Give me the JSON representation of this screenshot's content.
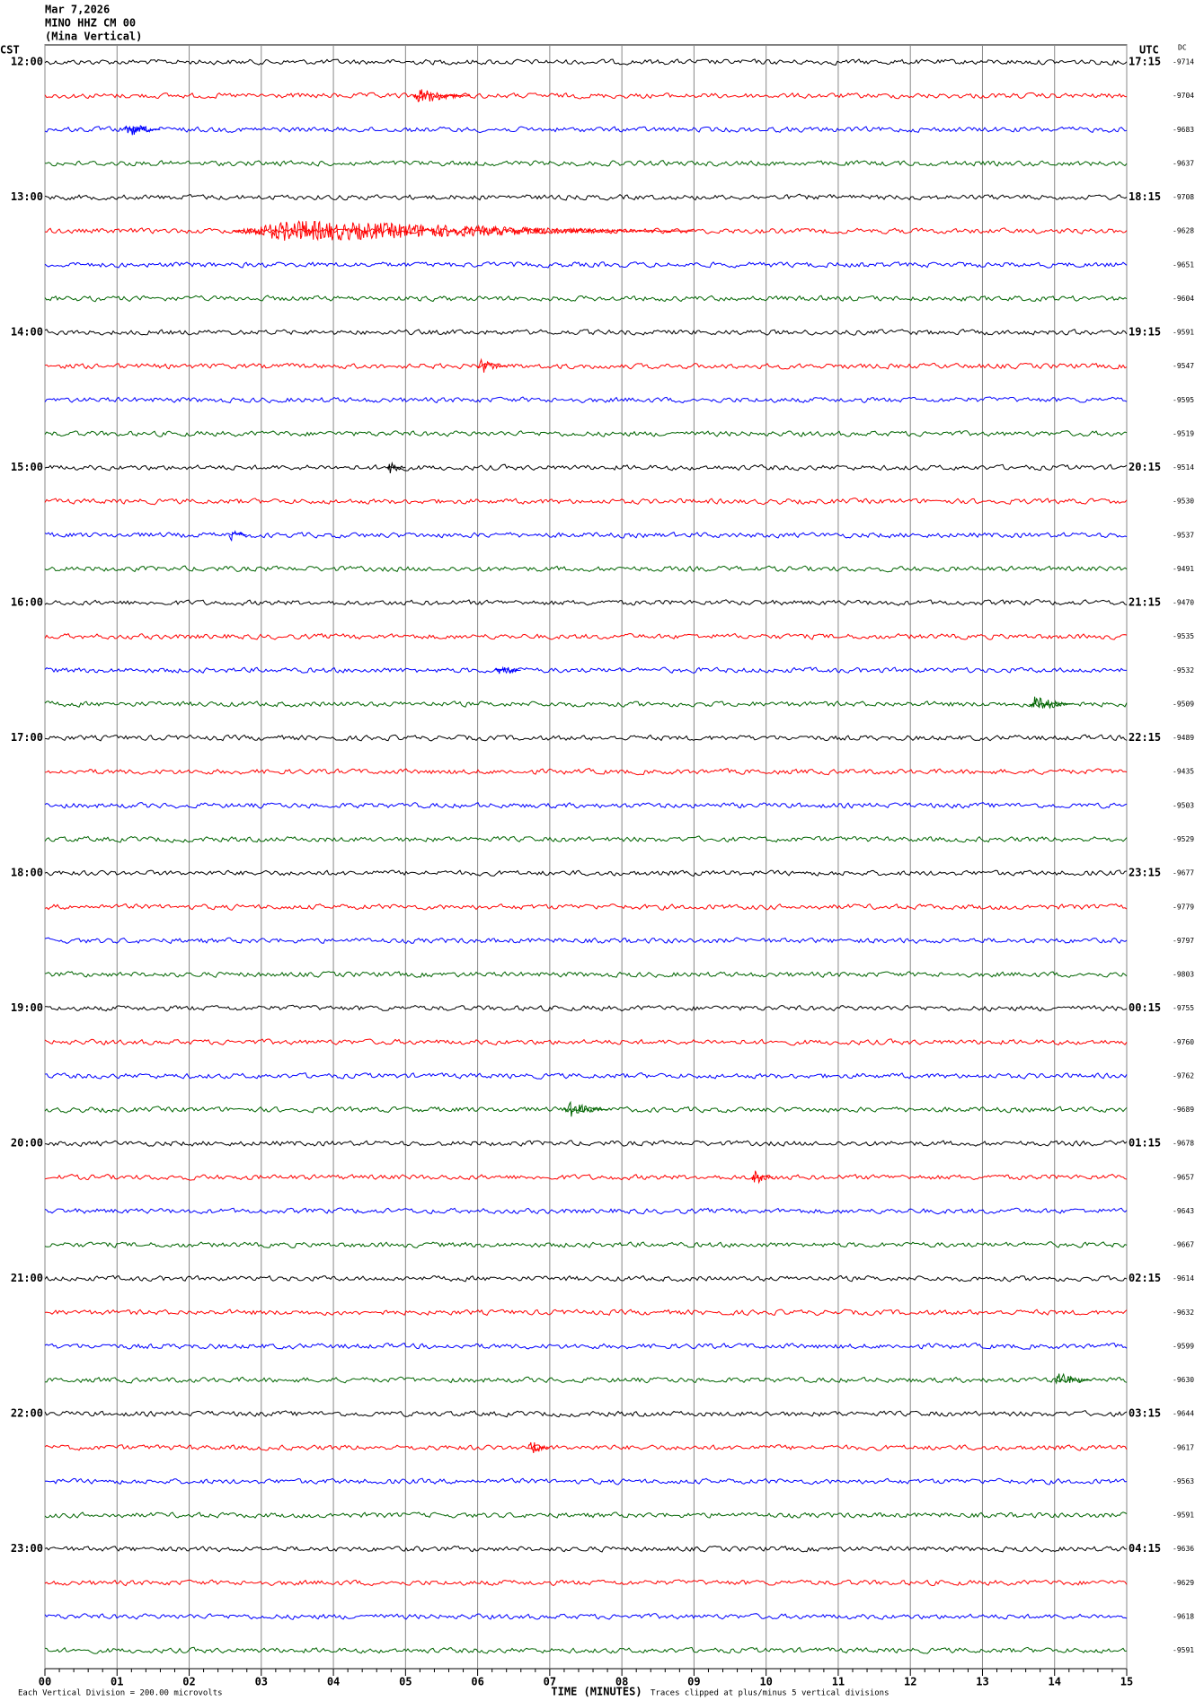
{
  "chart_data": {
    "type": "helicorder",
    "title": "Mar 7,2026",
    "station": "MINO HHZ CM 00",
    "subtitle": "(Mina Vertical)",
    "left_zone": "CST",
    "right_zone": "UTC",
    "dc_header": "DC",
    "x_label": "TIME (MINUTES)",
    "scale_note": "Each Vertical Division =  200.00 microvolts",
    "clip_note": "Traces clipped at plus/minus 5 vertical divisions",
    "xlim": [
      0,
      15
    ],
    "xticks": [
      {
        "value": 0,
        "label": "00"
      },
      {
        "value": 1,
        "label": "01"
      },
      {
        "value": 2,
        "label": "02"
      },
      {
        "value": 3,
        "label": "03"
      },
      {
        "value": 4,
        "label": "04"
      },
      {
        "value": 5,
        "label": "05"
      },
      {
        "value": 6,
        "label": "06"
      },
      {
        "value": 7,
        "label": "07"
      },
      {
        "value": 8,
        "label": "08"
      },
      {
        "value": 9,
        "label": "09"
      },
      10,
      11,
      12,
      13,
      14,
      15
    ],
    "grid": true,
    "colors": [
      "#000000",
      "#ff0000",
      "#0000ff",
      "#006400"
    ],
    "left_labels": [
      "12:00",
      "13:00",
      "14:00",
      "15:00",
      "16:00",
      "17:00",
      "18:00",
      "19:00",
      "20:00",
      "21:00",
      "22:00",
      "23:00"
    ],
    "right_labels": [
      "17:15",
      "18:15",
      "19:15",
      "20:15",
      "21:15",
      "22:15",
      "23:15",
      "00:15",
      "01:15",
      "02:15",
      "03:15",
      "04:15"
    ],
    "dc": [
      -9714,
      -9704,
      -9683,
      -9637,
      -9708,
      -9628,
      -9651,
      -9604,
      -9591,
      -9547,
      -9595,
      -9519,
      -9514,
      -9530,
      -9537,
      -9491,
      -9470,
      -9535,
      -9532,
      -9509,
      -9489,
      -9435,
      -9503,
      -9529,
      -9677,
      -9779,
      -9797,
      -9803,
      -9755,
      -9760,
      -9762,
      -9689,
      -9678,
      -9657,
      -9643,
      -9667,
      -9614,
      -9632,
      -9599,
      -9630,
      -9644,
      -9617,
      -9563,
      -9591,
      -9636,
      -9629,
      -9618,
      -9591
    ],
    "events": [
      {
        "row": 1,
        "x": [
          5.1,
          5.9
        ]
      },
      {
        "row": 2,
        "x": [
          1.1,
          1.6
        ]
      },
      {
        "row": 5,
        "x": [
          2.6,
          9.0
        ]
      },
      {
        "row": 9,
        "x": [
          6.0,
          6.4
        ]
      },
      {
        "row": 12,
        "x": [
          4.75,
          5.0
        ]
      },
      {
        "row": 14,
        "x": [
          2.55,
          2.8
        ]
      },
      {
        "row": 18,
        "x": [
          6.25,
          6.6
        ]
      },
      {
        "row": 19,
        "x": [
          13.65,
          14.25
        ]
      },
      {
        "row": 31,
        "x": [
          7.2,
          7.8
        ]
      },
      {
        "row": 33,
        "x": [
          9.8,
          10.1
        ]
      },
      {
        "row": 39,
        "x": [
          14.0,
          14.5
        ]
      },
      {
        "row": 41,
        "x": [
          6.7,
          7.0
        ]
      }
    ]
  }
}
